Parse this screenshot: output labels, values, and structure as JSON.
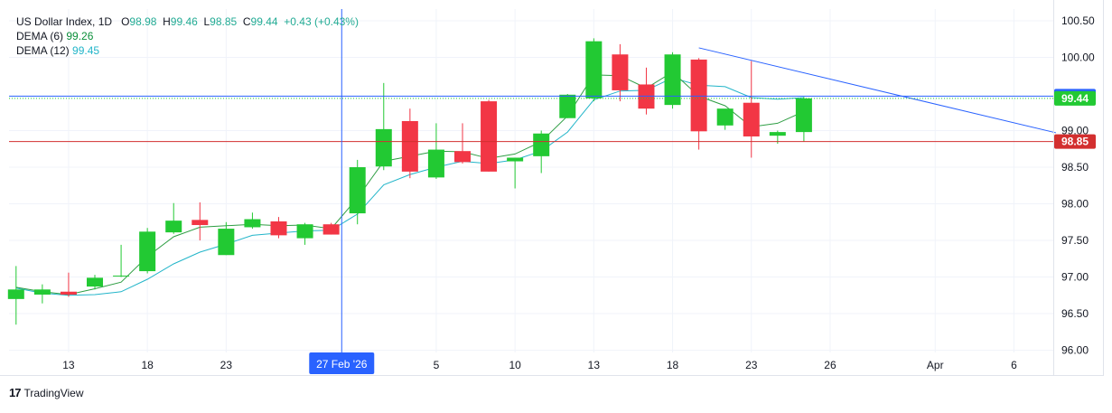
{
  "legend": {
    "symbol": "US Dollar Index, 1D",
    "o_label": "O",
    "o_value": "98.98",
    "h_label": "H",
    "h_value": "99.46",
    "l_label": "L",
    "l_value": "98.85",
    "c_label": "C",
    "c_value": "99.44",
    "change": "+0.43 (+0.43%)",
    "dema6_label": "DEMA (6)",
    "dema6_value": "99.26",
    "dema12_label": "DEMA (12)",
    "dema12_value": "99.45"
  },
  "branding": {
    "logo": "17",
    "name": "TradingView"
  },
  "colors": {
    "up": "#22c933",
    "down": "#f23645",
    "dema6": "#2f9e44",
    "dema12": "#22b5c9",
    "trendline": "#2962ff",
    "price_line_red": "#d32f2f",
    "crosshair": "#2962ff",
    "cursor_badge": "#2962ff",
    "grid": "#f0f3fa"
  },
  "chart_data": {
    "type": "candlestick",
    "ylim": [
      95.97,
      100.66
    ],
    "y_ticks": [
      "100.50",
      "100.00",
      "99.00",
      "98.50",
      "98.00",
      "97.50",
      "97.00",
      "96.50",
      "96.00"
    ],
    "x_ticks": [
      {
        "label": "13",
        "index": 2
      },
      {
        "label": "18",
        "index": 5
      },
      {
        "label": "23",
        "index": 8
      },
      {
        "label": "5",
        "index": 16
      },
      {
        "label": "10",
        "index": 19
      },
      {
        "label": "13",
        "index": 22
      },
      {
        "label": "18",
        "index": 25
      },
      {
        "label": "23",
        "index": 28
      },
      {
        "label": "26",
        "index": 31
      },
      {
        "label": "Apr",
        "index": 35
      },
      {
        "label": "6",
        "index": 38
      }
    ],
    "candles": [
      {
        "o": 96.7,
        "h": 97.15,
        "l": 96.35,
        "c": 96.83
      },
      {
        "o": 96.76,
        "h": 96.9,
        "l": 96.64,
        "c": 96.83
      },
      {
        "o": 96.8,
        "h": 97.06,
        "l": 96.73,
        "c": 96.76
      },
      {
        "o": 96.87,
        "h": 97.03,
        "l": 96.83,
        "c": 96.99
      },
      {
        "o": 97.02,
        "h": 97.44,
        "l": 97.0,
        "c": 97.02
      },
      {
        "o": 97.08,
        "h": 97.67,
        "l": 97.05,
        "c": 97.62
      },
      {
        "o": 97.61,
        "h": 98.01,
        "l": 97.59,
        "c": 97.77
      },
      {
        "o": 97.78,
        "h": 98.02,
        "l": 97.5,
        "c": 97.71
      },
      {
        "o": 97.3,
        "h": 97.75,
        "l": 97.3,
        "c": 97.66
      },
      {
        "o": 97.68,
        "h": 97.88,
        "l": 97.66,
        "c": 97.79
      },
      {
        "o": 97.76,
        "h": 97.82,
        "l": 97.53,
        "c": 97.57
      },
      {
        "o": 97.53,
        "h": 97.74,
        "l": 97.44,
        "c": 97.72
      },
      {
        "o": 97.72,
        "h": 97.74,
        "l": 97.58,
        "c": 97.58
      },
      {
        "o": 97.87,
        "h": 98.6,
        "l": 97.72,
        "c": 98.5
      },
      {
        "o": 98.51,
        "h": 99.65,
        "l": 98.46,
        "c": 99.02
      },
      {
        "o": 99.13,
        "h": 99.3,
        "l": 98.35,
        "c": 98.44
      },
      {
        "o": 98.36,
        "h": 99.1,
        "l": 98.34,
        "c": 98.74
      },
      {
        "o": 98.72,
        "h": 99.1,
        "l": 98.55,
        "c": 98.57
      },
      {
        "o": 99.4,
        "h": 99.42,
        "l": 98.44,
        "c": 98.44
      },
      {
        "o": 98.58,
        "h": 98.63,
        "l": 98.21,
        "c": 98.63
      },
      {
        "o": 98.65,
        "h": 99.0,
        "l": 98.42,
        "c": 98.96
      },
      {
        "o": 99.17,
        "h": 99.5,
        "l": 99.17,
        "c": 99.49
      },
      {
        "o": 99.44,
        "h": 100.26,
        "l": 99.4,
        "c": 100.22
      },
      {
        "o": 100.04,
        "h": 100.18,
        "l": 99.4,
        "c": 99.55
      },
      {
        "o": 99.63,
        "h": 99.86,
        "l": 99.22,
        "c": 99.3
      },
      {
        "o": 99.35,
        "h": 100.07,
        "l": 99.3,
        "c": 100.04
      },
      {
        "o": 99.97,
        "h": 99.99,
        "l": 98.74,
        "c": 98.99
      },
      {
        "o": 99.07,
        "h": 99.29,
        "l": 99.01,
        "c": 99.3
      },
      {
        "o": 99.38,
        "h": 99.95,
        "l": 98.63,
        "c": 98.92
      },
      {
        "o": 98.93,
        "h": 99.0,
        "l": 98.82,
        "c": 98.98
      },
      {
        "o": 98.98,
        "h": 99.46,
        "l": 98.85,
        "c": 99.44
      }
    ],
    "dema6": [
      96.86,
      96.8,
      96.76,
      96.84,
      96.93,
      97.28,
      97.55,
      97.68,
      97.7,
      97.72,
      97.7,
      97.71,
      97.66,
      98.08,
      98.58,
      98.65,
      98.72,
      98.71,
      98.62,
      98.68,
      98.85,
      99.2,
      99.76,
      99.75,
      99.58,
      99.8,
      99.47,
      99.34,
      99.05,
      99.1,
      99.26
    ],
    "dema12": [
      96.85,
      96.78,
      96.75,
      96.76,
      96.8,
      96.97,
      97.18,
      97.34,
      97.45,
      97.57,
      97.6,
      97.63,
      97.64,
      97.86,
      98.26,
      98.4,
      98.5,
      98.58,
      98.55,
      98.6,
      98.72,
      98.98,
      99.42,
      99.54,
      99.55,
      99.72,
      99.62,
      99.6,
      99.45,
      99.43,
      99.45
    ],
    "trendline": {
      "from_index": 26,
      "from_value": 100.13,
      "to_index": 39.6,
      "to_value": 98.97
    },
    "crosshair": {
      "index": 12.4,
      "value": 99.47,
      "date_label": "27 Feb '26",
      "price_label": "99.47"
    },
    "last_price": {
      "value": 99.44,
      "label": "99.44"
    },
    "low_line": {
      "value": 98.85,
      "label": "98.85"
    }
  }
}
